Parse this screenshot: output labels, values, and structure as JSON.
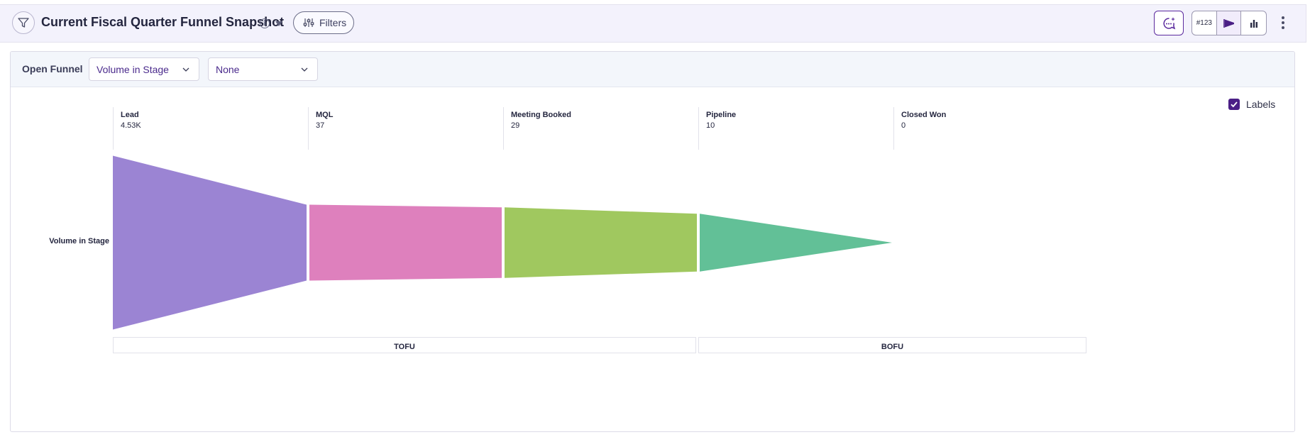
{
  "header": {
    "title": "Current Fiscal Quarter Funnel Snapshot",
    "filters_label": "Filters",
    "seg_buttons": [
      {
        "icon": "number-format-icon",
        "label": "#123"
      },
      {
        "icon": "funnel-chart-icon",
        "label": ""
      },
      {
        "icon": "bar-chart-icon",
        "label": ""
      }
    ],
    "icons": {
      "funnel": "funnel-icon",
      "info": "info-icon",
      "caret": "caret-down-icon",
      "filters": "sliders-icon",
      "chat": "ai-chat-icon",
      "more": "more-vertical-icon"
    }
  },
  "toolbar": {
    "label": "Open Funnel",
    "measure_select": "Volume in Stage",
    "breakdown_select": "None"
  },
  "labels_toggle": {
    "label": "Labels",
    "checked": true
  },
  "colors": {
    "accent": "#4b1f86",
    "stages": [
      "#9b84d3",
      "#de80bd",
      "#a0c85f",
      "#62c097"
    ]
  },
  "chart_data": {
    "type": "funnel",
    "row_label": "Volume in Stage",
    "stages": [
      {
        "name": "Lead",
        "value_label": "4.53K",
        "value": 4530
      },
      {
        "name": "MQL",
        "value_label": "37",
        "value": 37
      },
      {
        "name": "Meeting Booked",
        "value_label": "29",
        "value": 29
      },
      {
        "name": "Pipeline",
        "value_label": "10",
        "value": 10
      },
      {
        "name": "Closed Won",
        "value_label": "0",
        "value": 0
      }
    ],
    "groups": [
      {
        "name": "TOFU",
        "stages": [
          "Lead",
          "MQL",
          "Meeting Booked"
        ]
      },
      {
        "name": "BOFU",
        "stages": [
          "Pipeline",
          "Closed Won"
        ]
      }
    ]
  }
}
